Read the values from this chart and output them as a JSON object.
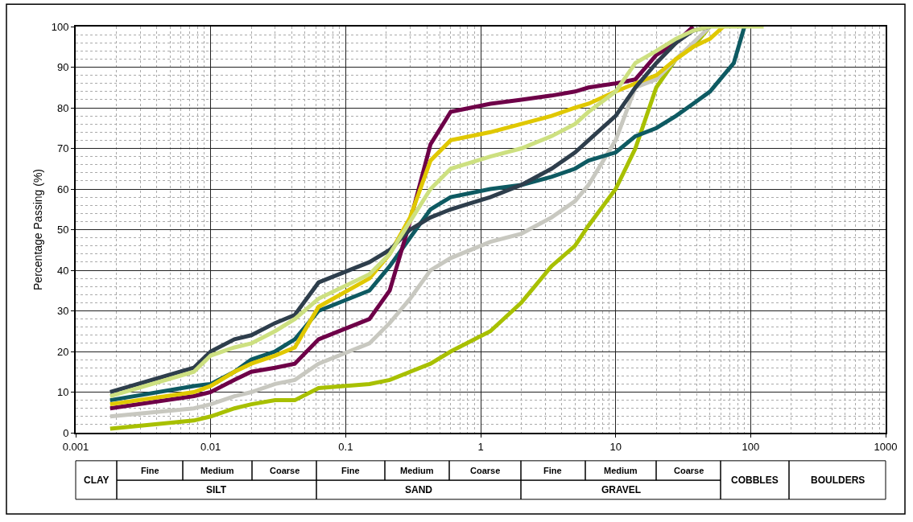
{
  "chart_data": {
    "type": "line",
    "ylabel": "Percentage Passing (%)",
    "log": "x",
    "grid": true,
    "legend": false,
    "marker": "none",
    "line_style": "solid",
    "x": [
      0.0018,
      0.0075,
      0.01,
      0.015,
      0.02,
      0.03,
      0.042,
      0.063,
      0.15,
      0.212,
      0.3,
      0.425,
      0.6,
      1.18,
      2,
      3.35,
      5,
      6.3,
      10,
      14,
      20,
      28,
      37.5,
      50,
      63,
      75,
      90,
      125
    ],
    "xlim": [
      0.001,
      1000
    ],
    "xticks": [
      0.001,
      0.01,
      0.1,
      1,
      10,
      100,
      1000
    ],
    "ylim": [
      0,
      100
    ],
    "yticks": [
      0,
      10,
      20,
      30,
      40,
      50,
      60,
      70,
      80,
      90,
      100
    ],
    "series": [
      {
        "color": "#a8c000",
        "values": [
          1,
          3,
          4,
          6,
          7,
          8,
          8,
          11,
          12,
          13,
          15,
          17,
          20,
          25,
          32,
          41,
          46,
          51,
          60,
          70,
          85,
          92,
          95,
          100,
          null,
          null,
          null,
          null
        ]
      },
      {
        "color": "#c8c8c0",
        "values": [
          4,
          6,
          7,
          9,
          10,
          12,
          13,
          17,
          22,
          27,
          33,
          40,
          43,
          47,
          49,
          53,
          57,
          61,
          72,
          85,
          87,
          92,
          96,
          100,
          null,
          null,
          null,
          null
        ]
      },
      {
        "color": "#0e5a62",
        "values": [
          8,
          11.5,
          12,
          15,
          18,
          20,
          23,
          30,
          35,
          41,
          48,
          55,
          58,
          60,
          61,
          63,
          65,
          67,
          69,
          73,
          75,
          78,
          81,
          84,
          88,
          91,
          100,
          null
        ]
      },
      {
        "color": "#6e0048",
        "values": [
          6,
          9,
          10,
          13,
          15,
          16,
          17,
          23,
          28,
          35,
          52,
          71,
          79,
          81,
          82,
          83,
          84,
          85,
          86,
          87,
          93,
          96,
          100,
          null,
          null,
          null,
          null,
          null
        ]
      },
      {
        "color": "#e0c800",
        "values": [
          7,
          10,
          11.5,
          15,
          17,
          19,
          21,
          31,
          38,
          44,
          53,
          67,
          72,
          74,
          76,
          78,
          80,
          81,
          84,
          86,
          88,
          92,
          95,
          97,
          100,
          null,
          null,
          null
        ]
      },
      {
        "color": "#2e3e4c",
        "values": [
          10,
          16,
          20,
          23,
          24,
          27,
          29,
          37,
          42,
          45,
          50,
          53,
          55,
          58,
          61,
          65,
          69,
          72,
          78,
          85,
          91,
          96,
          99,
          100,
          null,
          null,
          null,
          null
        ]
      },
      {
        "color": "#cde080",
        "values": [
          9,
          15,
          19,
          21,
          22,
          25,
          28,
          33,
          39,
          44,
          52,
          60,
          65,
          68,
          70,
          73,
          76,
          79,
          84,
          91,
          94,
          97,
          99,
          100,
          100,
          100,
          100,
          100
        ]
      }
    ],
    "annotations": [
      "CLAY",
      "Fine",
      "Medium",
      "Coarse",
      "SILT",
      "Fine",
      "Medium",
      "Coarse",
      "SAND",
      "Fine",
      "Medium",
      "Coarse",
      "GRAVEL",
      "COBBLES",
      "BOULDERS"
    ]
  }
}
